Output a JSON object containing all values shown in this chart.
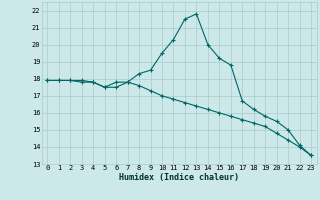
{
  "xlabel": "Humidex (Indice chaleur)",
  "background_color": "#cce8e8",
  "grid_color": "#aacccc",
  "line_color": "#006666",
  "xlim": [
    -0.5,
    23.5
  ],
  "ylim": [
    13,
    22.5
  ],
  "yticks": [
    13,
    14,
    15,
    16,
    17,
    18,
    19,
    20,
    21,
    22
  ],
  "xticks": [
    0,
    1,
    2,
    3,
    4,
    5,
    6,
    7,
    8,
    9,
    10,
    11,
    12,
    13,
    14,
    15,
    16,
    17,
    18,
    19,
    20,
    21,
    22,
    23
  ],
  "curve1_x": [
    0,
    1,
    2,
    3,
    4,
    5,
    6,
    7,
    8,
    9,
    10,
    11,
    12,
    13,
    14,
    15,
    16,
    17,
    18,
    19,
    20,
    21,
    22,
    23
  ],
  "curve1_y": [
    17.9,
    17.9,
    17.9,
    17.9,
    17.8,
    17.5,
    17.5,
    17.8,
    18.3,
    18.5,
    19.5,
    20.3,
    21.5,
    21.8,
    20.0,
    19.2,
    18.8,
    16.7,
    16.2,
    15.8,
    15.5,
    15.0,
    14.1,
    13.5
  ],
  "curve2_x": [
    0,
    1,
    2,
    3,
    4,
    5,
    6,
    7,
    8,
    9,
    10,
    11,
    12,
    13,
    14,
    15,
    16,
    17,
    18,
    19,
    20,
    21,
    22,
    23
  ],
  "curve2_y": [
    17.9,
    17.9,
    17.9,
    17.8,
    17.8,
    17.5,
    17.8,
    17.8,
    17.6,
    17.3,
    17.0,
    16.8,
    16.6,
    16.4,
    16.2,
    16.0,
    15.8,
    15.6,
    15.4,
    15.2,
    14.8,
    14.4,
    14.0,
    13.5
  ],
  "xlabel_fontsize": 6,
  "tick_fontsize": 5,
  "line_width": 0.8,
  "marker_size": 3
}
